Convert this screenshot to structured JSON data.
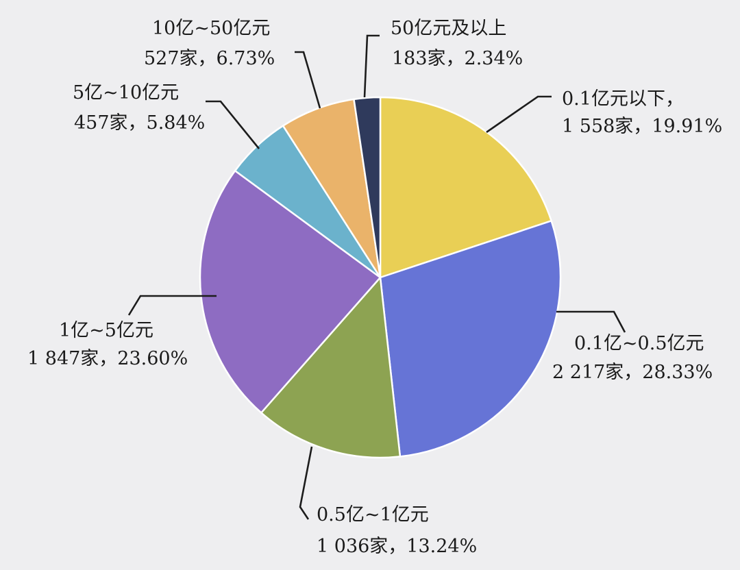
{
  "chart_data": {
    "type": "pie",
    "title": "",
    "start_angle_deg": 0,
    "direction": "clockwise",
    "slices": [
      {
        "category": "0.1亿元以下，",
        "count_label": "1 558家，19.91%",
        "count": 1558,
        "percent": 19.91,
        "color": "#e9cf55"
      },
      {
        "category": "0.1亿~0.5亿元",
        "count_label": "2 217家，28.33%",
        "count": 2217,
        "percent": 28.33,
        "color": "#6674d6"
      },
      {
        "category": "0.5亿~1亿元",
        "count_label": "1 036家，13.24%",
        "count": 1036,
        "percent": 13.24,
        "color": "#8da352"
      },
      {
        "category": "1亿~5亿元",
        "count_label": "1 847家，23.60%",
        "count": 1847,
        "percent": 23.6,
        "color": "#8e6cc2"
      },
      {
        "category": "5亿~10亿元",
        "count_label": "457家，5.84%",
        "count": 457,
        "percent": 5.84,
        "color": "#6bb2cc"
      },
      {
        "category": "10亿~50亿元",
        "count_label": "527家，6.73%",
        "count": 527,
        "percent": 6.73,
        "color": "#eab36a"
      },
      {
        "category": "50亿元及以上",
        "count_label": "183家，2.34%",
        "count": 183,
        "percent": 2.34,
        "color": "#2f3a5c"
      }
    ]
  }
}
